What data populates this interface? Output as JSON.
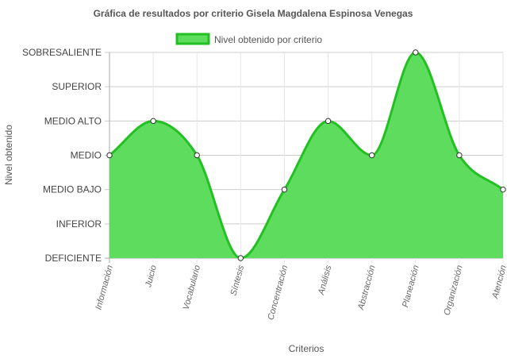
{
  "chart_data": {
    "type": "area",
    "title": "Gráfica de resultados por criterio Gisela Magdalena Espinosa Venegas",
    "xlabel": "Criterios",
    "ylabel": "Nivel obtenido",
    "legend": {
      "position": "top",
      "label": "Nivel obtenido por criterio"
    },
    "levels": [
      "DEFICIENTE",
      "INFERIOR",
      "MEDIO BAJO",
      "MEDIO",
      "MEDIO ALTO",
      "SUPERIOR",
      "SOBRESALIENTE"
    ],
    "categories": [
      "Información",
      "Juicio",
      "Vocabulario",
      "Síntesis",
      "Concentración",
      "Análisis",
      "Abstracción",
      "Planeación",
      "Organización",
      "Atención"
    ],
    "series": [
      {
        "name": "Nivel obtenido por criterio",
        "values": [
          3,
          4,
          3,
          0,
          2,
          4,
          3,
          6,
          3,
          2
        ]
      }
    ],
    "ylim": [
      0,
      6
    ],
    "grid": true,
    "colors": {
      "fill": "#5ddc5d",
      "line": "#22c022",
      "point_fill": "#ffffff",
      "point_stroke": "#333333"
    }
  }
}
